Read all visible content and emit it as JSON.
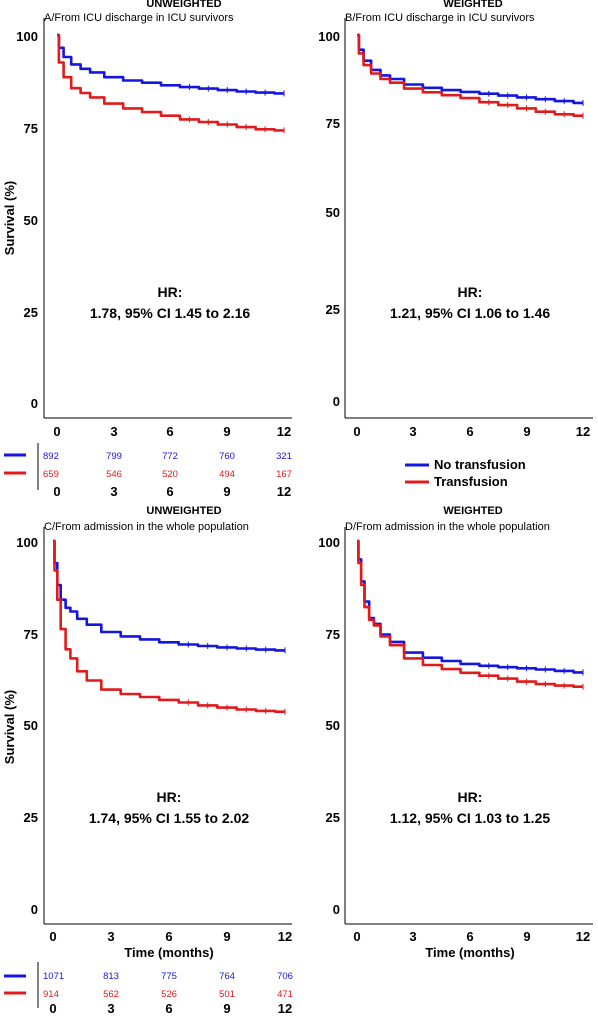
{
  "colors": {
    "no_transfusion": "#1515e0",
    "transfusion": "#e01b1b"
  },
  "legend": {
    "items": [
      "No transfusion",
      "Transfusion"
    ],
    "placement": "between-top-and-bottom-right"
  },
  "chart_data": [
    {
      "id": "A",
      "type": "line",
      "header": "UNWEIGHTED",
      "title": "A/From ICU discharge in ICU survivors",
      "ylabel": "Survival (%)",
      "xlabel": "",
      "xlim": [
        0,
        12
      ],
      "ylim": [
        0,
        100
      ],
      "xticks": [
        "0",
        "3",
        "6",
        "9",
        "12"
      ],
      "yticks": [
        "0",
        "25",
        "50",
        "75",
        "100"
      ],
      "hr_label": "HR:",
      "hr_text": "1.78, 95% CI 1.45 to 2.16",
      "series": [
        {
          "key": "no_transfusion",
          "x": [
            0,
            0.2,
            0.5,
            1,
            1.5,
            2,
            3,
            4,
            5,
            6,
            7,
            8,
            9,
            10,
            11,
            12
          ],
          "y": [
            100,
            96.5,
            94,
            92,
            90.8,
            89.8,
            88.5,
            87.6,
            87,
            86.3,
            85.8,
            85.4,
            85,
            84.6,
            84.3,
            84.1
          ]
        },
        {
          "key": "transfusion",
          "x": [
            0,
            0.2,
            0.5,
            1,
            1.5,
            2,
            3,
            4,
            5,
            6,
            7,
            8,
            9,
            10,
            11,
            12
          ],
          "y": [
            100,
            92.5,
            88.5,
            85.5,
            84.2,
            83,
            81.3,
            80,
            79,
            78,
            77,
            76.3,
            75.6,
            74.9,
            74.3,
            74
          ]
        }
      ],
      "risk_table": {
        "header": "",
        "x_labels": [
          "0",
          "3",
          "6",
          "9",
          "12"
        ],
        "rows": [
          {
            "key": "no_transfusion",
            "values": [
              "892",
              "799",
              "772",
              "760",
              "321"
            ]
          },
          {
            "key": "transfusion",
            "values": [
              "659",
              "546",
              "520",
              "494",
              "167"
            ]
          }
        ]
      }
    },
    {
      "id": "B",
      "type": "line",
      "header": "WEIGHTED",
      "title": "B/From ICU discharge in ICU survivors",
      "ylabel": "",
      "xlabel": "",
      "xlim": [
        0,
        12
      ],
      "ylim": [
        0,
        100
      ],
      "xticks": [
        "0",
        "3",
        "6",
        "9",
        "12"
      ],
      "yticks": [
        "0",
        "25",
        "50",
        "75",
        "100"
      ],
      "hr_label": "HR:",
      "hr_text": "1.21, 95% CI 1.06 to 1.46",
      "series": [
        {
          "key": "no_transfusion",
          "x": [
            0,
            0.2,
            0.5,
            1,
            1.5,
            2,
            3,
            4,
            5,
            6,
            7,
            8,
            9,
            10,
            11,
            12
          ],
          "y": [
            100,
            96,
            93,
            90.5,
            89,
            88,
            86.5,
            85.6,
            85,
            84.5,
            84,
            83.5,
            83,
            82.5,
            82,
            81.5
          ]
        },
        {
          "key": "transfusion",
          "x": [
            0,
            0.2,
            0.5,
            1,
            1.5,
            2,
            3,
            4,
            5,
            6,
            7,
            8,
            9,
            10,
            11,
            12
          ],
          "y": [
            100,
            95,
            91.8,
            89.5,
            88,
            87,
            85.4,
            84.4,
            83.6,
            82.8,
            81.7,
            80.9,
            80,
            79.1,
            78.4,
            78
          ]
        }
      ]
    },
    {
      "id": "C",
      "type": "line",
      "header": "UNWEIGHTED",
      "title": "C/From admission in the whole population",
      "ylabel": "Survival (%)",
      "xlabel": "Time (months)",
      "xlim": [
        0,
        12
      ],
      "ylim": [
        0,
        100
      ],
      "xticks": [
        "0",
        "3",
        "6",
        "9",
        "12"
      ],
      "yticks": [
        "0",
        "25",
        "50",
        "75",
        "100"
      ],
      "hr_label": "HR:",
      "hr_text": "1.74, 95% CI 1.55 to 2.02",
      "series": [
        {
          "key": "no_transfusion",
          "x": [
            0,
            0.15,
            0.3,
            0.5,
            0.8,
            1,
            1.5,
            2,
            3,
            4,
            5,
            6,
            7,
            8,
            9,
            10,
            11,
            12
          ],
          "y": [
            100,
            94,
            88,
            84,
            81.8,
            80.8,
            78.8,
            77.2,
            75.2,
            74,
            73.2,
            72.4,
            71.8,
            71.4,
            71,
            70.7,
            70.4,
            70.2
          ]
        },
        {
          "key": "transfusion",
          "x": [
            0,
            0.15,
            0.3,
            0.5,
            0.8,
            1,
            1.5,
            2,
            3,
            4,
            5,
            6,
            7,
            8,
            9,
            10,
            11,
            12
          ],
          "y": [
            100,
            92,
            84,
            76,
            70.5,
            68,
            64.5,
            62,
            59.5,
            58.3,
            57.5,
            56.7,
            56,
            55.2,
            54.6,
            54.1,
            53.7,
            53.5
          ]
        }
      ],
      "risk_table": {
        "header": "",
        "x_labels": [
          "0",
          "3",
          "6",
          "9",
          "12"
        ],
        "rows": [
          {
            "key": "no_transfusion",
            "values": [
              "1071",
              "813",
              "775",
              "764",
              "706"
            ]
          },
          {
            "key": "transfusion",
            "values": [
              "914",
              "562",
              "526",
              "501",
              "471"
            ]
          }
        ]
      }
    },
    {
      "id": "D",
      "type": "line",
      "header": "WEIGHTED",
      "title": "D/From admission in the whole population",
      "ylabel": "",
      "xlabel": "Time (months)",
      "xlim": [
        0,
        12
      ],
      "ylim": [
        0,
        100
      ],
      "xticks": [
        "0",
        "3",
        "6",
        "9",
        "12"
      ],
      "yticks": [
        "0",
        "25",
        "50",
        "75",
        "100"
      ],
      "hr_label": "HR:",
      "hr_text": "1.12, 95% CI  1.03 to 1.25",
      "series": [
        {
          "key": "no_transfusion",
          "x": [
            0,
            0.15,
            0.3,
            0.5,
            0.8,
            1,
            1.5,
            2,
            3,
            4,
            5,
            6,
            7,
            8,
            9,
            10,
            11,
            12
          ],
          "y": [
            100,
            95,
            89,
            83.5,
            79,
            77.4,
            74.5,
            72.5,
            69.6,
            68.2,
            67.3,
            66.5,
            66,
            65.6,
            65.3,
            65,
            64.6,
            64.2
          ]
        },
        {
          "key": "transfusion",
          "x": [
            0,
            0.15,
            0.3,
            0.5,
            0.8,
            1,
            1.5,
            2,
            3,
            4,
            5,
            6,
            7,
            8,
            9,
            10,
            11,
            12
          ],
          "y": [
            100,
            94,
            88,
            82,
            78.5,
            77,
            74,
            71.6,
            68,
            66.2,
            65.1,
            64.1,
            63.3,
            62.5,
            61.7,
            61,
            60.6,
            60.3
          ]
        }
      ]
    }
  ]
}
